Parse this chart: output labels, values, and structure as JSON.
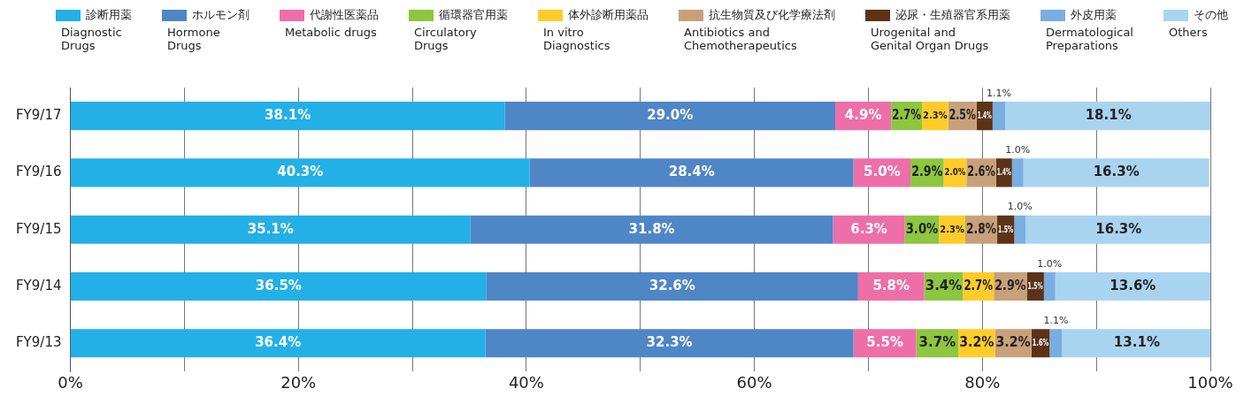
{
  "chart_data": {
    "type": "bar",
    "orientation": "horizontal",
    "stacked": true,
    "legend": "top",
    "grid": "x",
    "categories": [
      "FY9/17",
      "FY9/16",
      "FY9/15",
      "FY9/14",
      "FY9/13"
    ],
    "xlim": [
      0,
      100
    ],
    "xticks": [
      {
        "value": 0,
        "label": "0%"
      },
      {
        "value": 10,
        "label": null
      },
      {
        "value": 20,
        "label": "20%"
      },
      {
        "value": 30,
        "label": null
      },
      {
        "value": 40,
        "label": "40%"
      },
      {
        "value": 50,
        "label": null
      },
      {
        "value": 60,
        "label": "60%"
      },
      {
        "value": 70,
        "label": null
      },
      {
        "value": 80,
        "label": "80%"
      },
      {
        "value": 90,
        "label": null
      },
      {
        "value": 100,
        "label": "100%"
      }
    ],
    "series": [
      {
        "name": "診断用薬\nDiagnostic\nDrugs",
        "color": "#23b0e6",
        "values": [
          38.1,
          40.3,
          35.1,
          36.5,
          36.4
        ],
        "value_labels": [
          "38.1%",
          "40.3%",
          "35.1%",
          "36.5%",
          "36.4%"
        ]
      },
      {
        "name": "ホルモン剤\nHormone\nDrugs",
        "color": "#4f86c6",
        "values": [
          29.0,
          28.4,
          31.8,
          32.6,
          32.3
        ],
        "value_labels": [
          "29.0%",
          "28.4%",
          "31.8%",
          "32.6%",
          "32.3%"
        ]
      },
      {
        "name": "代謝性医薬品\nMetabolic drugs",
        "color": "#ee6ea8",
        "values": [
          4.9,
          5.0,
          6.3,
          5.8,
          5.5
        ],
        "value_labels": [
          "4.9%",
          "5.0%",
          "6.3%",
          "5.8%",
          "5.5%"
        ]
      },
      {
        "name": "循環器官用薬\nCirculatory\nDrugs",
        "color": "#8dc63f",
        "values": [
          2.7,
          2.9,
          3.0,
          3.4,
          3.7
        ],
        "value_labels": [
          "2.7%",
          "2.9%",
          "3.0%",
          "3.4%",
          "3.7%"
        ]
      },
      {
        "name": "体外診断用薬品\nIn vitro\nDiagnostics",
        "color": "#ffcc29",
        "values": [
          2.3,
          2.0,
          2.3,
          2.7,
          3.2
        ],
        "value_labels": [
          "2.3%",
          "2.0%",
          "2.3%",
          "2.7%",
          "3.2%"
        ]
      },
      {
        "name": "抗生物質及び化学療法剤\nAntibiotics and\nChemotherapeutics",
        "color": "#c8a07a",
        "values": [
          2.5,
          2.6,
          2.8,
          2.9,
          3.2
        ],
        "value_labels": [
          "2.5%",
          "2.6%",
          "2.8%",
          "2.9%",
          "3.2%"
        ]
      },
      {
        "name": "泌尿・生殖器官系用薬\nUrogenital and\nGenital Organ Drugs",
        "color": "#5c3317",
        "values": [
          1.4,
          1.4,
          1.5,
          1.5,
          1.6
        ],
        "value_labels": [
          "1.4%",
          "1.4%",
          "1.5%",
          "1.5%",
          "1.6%"
        ]
      },
      {
        "name": "外皮用薬\nDermatological\nPreparations",
        "color": "#7aaee0",
        "values": [
          1.1,
          1.0,
          1.0,
          1.0,
          1.1
        ],
        "value_labels": [
          "1.1%",
          "1.0%",
          "1.0%",
          "1.0%",
          "1.1%"
        ]
      },
      {
        "name": "その他\nOthers",
        "color": "#a9d4f0",
        "values": [
          18.1,
          16.3,
          16.3,
          13.6,
          13.1
        ],
        "value_labels": [
          "18.1%",
          "16.3%",
          "16.3%",
          "13.6%",
          "13.1%"
        ]
      }
    ]
  }
}
